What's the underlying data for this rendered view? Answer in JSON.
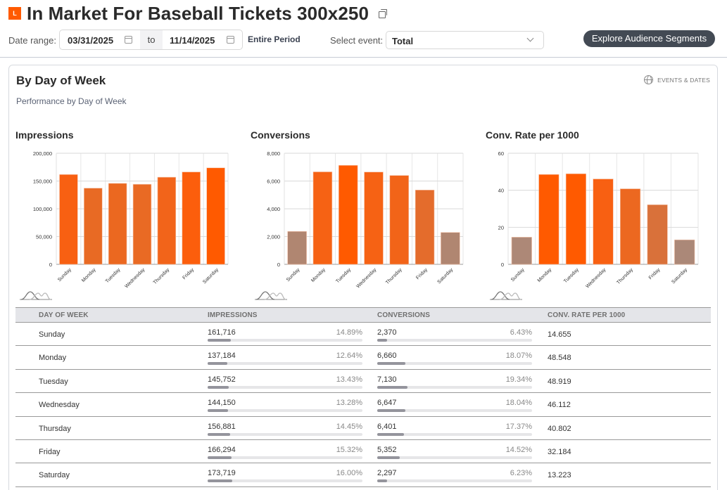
{
  "header": {
    "badge": "L",
    "title": "In Market For Baseball Tickets 300x250"
  },
  "filters": {
    "date_range_label": "Date range:",
    "start_date": "03/31/2025",
    "to_label": "to",
    "end_date": "11/14/2025",
    "entire_period": "Entire Period",
    "select_event_label": "Select event:",
    "select_event_value": "Total",
    "explore_button": "Explore Audience Segments"
  },
  "card": {
    "title": "By Day of Week",
    "subtitle": "Performance by Day of Week",
    "events_link": "EVENTS & DATES"
  },
  "colors": {
    "accent": "#ff5a00",
    "bar_high": "#ff5a00",
    "bar_mid": "#e8692a",
    "bar_low": "#b08671",
    "grid": "#dddddd"
  },
  "chart_data": [
    {
      "type": "bar",
      "title": "Impressions",
      "xlabel": "",
      "ylabel": "",
      "categories": [
        "Sunday",
        "Monday",
        "Tuesday",
        "Wednesday",
        "Thursday",
        "Friday",
        "Saturday"
      ],
      "values": [
        161716,
        137184,
        145752,
        144150,
        156881,
        166294,
        173719
      ],
      "ylim": [
        0,
        200000
      ],
      "yticks": [
        0,
        50000,
        100000,
        150000,
        200000
      ],
      "ytick_labels": [
        "0",
        "50,000",
        "100,000",
        "150,000",
        "200,000"
      ],
      "colors": [
        "#f86012",
        "#e86a24",
        "#eb6820",
        "#e96a24",
        "#f2641a",
        "#fc5e0c",
        "#ff5a00"
      ],
      "grid": true,
      "legend": "none"
    },
    {
      "type": "bar",
      "title": "Conversions",
      "xlabel": "",
      "ylabel": "",
      "categories": [
        "Sunday",
        "Monday",
        "Tuesday",
        "Wednesday",
        "Thursday",
        "Friday",
        "Saturday"
      ],
      "values": [
        2370,
        6660,
        7130,
        6647,
        6401,
        5352,
        2297
      ],
      "ylim": [
        0,
        8000
      ],
      "yticks": [
        0,
        2000,
        4000,
        6000,
        8000
      ],
      "ytick_labels": [
        "0",
        "2,000",
        "4,000",
        "6,000",
        "8,000"
      ],
      "colors": [
        "#b08671",
        "#f66214",
        "#ff5a00",
        "#f66214",
        "#f26418",
        "#e46c2c",
        "#b08671"
      ],
      "grid": true,
      "legend": "none"
    },
    {
      "type": "bar",
      "title": "Conv. Rate per 1000",
      "xlabel": "",
      "ylabel": "",
      "categories": [
        "Sunday",
        "Monday",
        "Tuesday",
        "Wednesday",
        "Thursday",
        "Friday",
        "Saturday"
      ],
      "values": [
        14.655,
        48.548,
        48.919,
        46.112,
        40.802,
        32.184,
        13.223
      ],
      "ylim": [
        0,
        60
      ],
      "yticks": [
        0,
        20,
        40,
        60
      ],
      "ytick_labels": [
        "0",
        "20",
        "40",
        "60"
      ],
      "colors": [
        "#ad8877",
        "#ff5a00",
        "#ff5a00",
        "#f86012",
        "#ec6820",
        "#d9713a",
        "#ab8878"
      ],
      "grid": true,
      "legend": "none"
    }
  ],
  "table": {
    "headers": [
      "DAY OF WEEK",
      "IMPRESSIONS",
      "CONVERSIONS",
      "CONV. RATE PER 1000"
    ],
    "rows": [
      {
        "day": "Sunday",
        "impressions": "161,716",
        "imp_pct": "14.89%",
        "imp_share": 14.89,
        "conversions": "2,370",
        "conv_pct": "6.43%",
        "conv_share": 6.43,
        "rate": "14.655"
      },
      {
        "day": "Monday",
        "impressions": "137,184",
        "imp_pct": "12.64%",
        "imp_share": 12.64,
        "conversions": "6,660",
        "conv_pct": "18.07%",
        "conv_share": 18.07,
        "rate": "48.548"
      },
      {
        "day": "Tuesday",
        "impressions": "145,752",
        "imp_pct": "13.43%",
        "imp_share": 13.43,
        "conversions": "7,130",
        "conv_pct": "19.34%",
        "conv_share": 19.34,
        "rate": "48.919"
      },
      {
        "day": "Wednesday",
        "impressions": "144,150",
        "imp_pct": "13.28%",
        "imp_share": 13.28,
        "conversions": "6,647",
        "conv_pct": "18.04%",
        "conv_share": 18.04,
        "rate": "46.112"
      },
      {
        "day": "Thursday",
        "impressions": "156,881",
        "imp_pct": "14.45%",
        "imp_share": 14.45,
        "conversions": "6,401",
        "conv_pct": "17.37%",
        "conv_share": 17.37,
        "rate": "40.802"
      },
      {
        "day": "Friday",
        "impressions": "166,294",
        "imp_pct": "15.32%",
        "imp_share": 15.32,
        "conversions": "5,352",
        "conv_pct": "14.52%",
        "conv_share": 14.52,
        "rate": "32.184"
      },
      {
        "day": "Saturday",
        "impressions": "173,719",
        "imp_pct": "16.00%",
        "imp_share": 16.0,
        "conversions": "2,297",
        "conv_pct": "6.23%",
        "conv_share": 6.23,
        "rate": "13.223"
      }
    ]
  }
}
